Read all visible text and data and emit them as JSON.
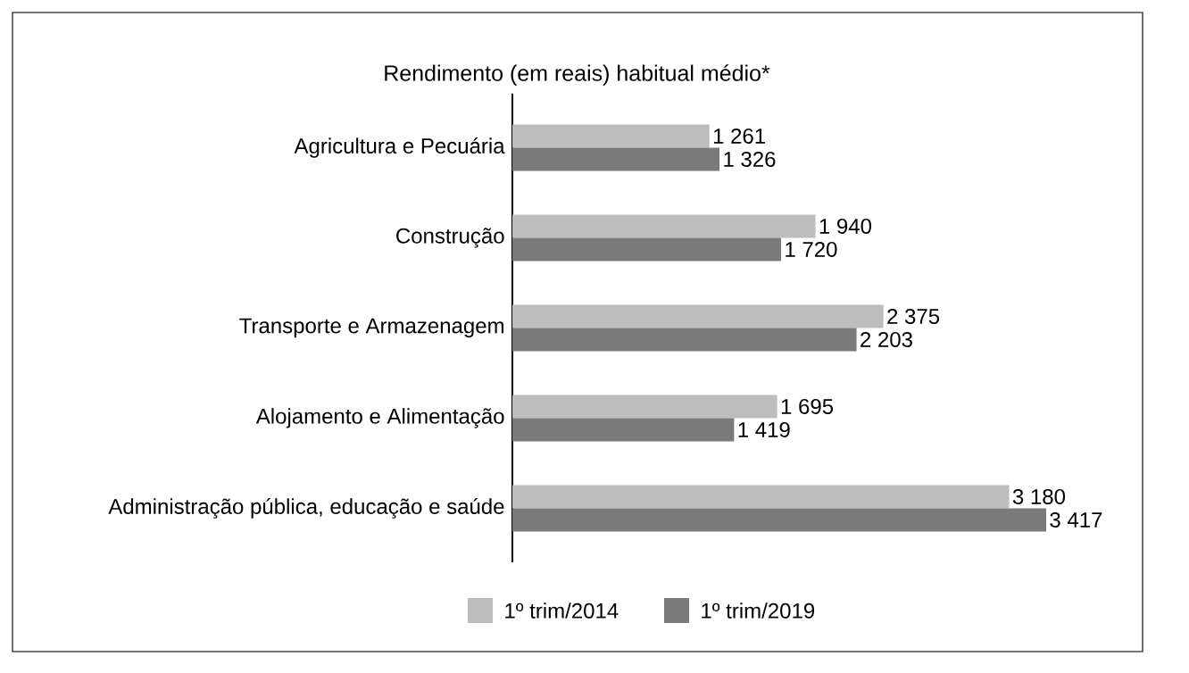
{
  "chart_data": {
    "type": "bar",
    "orientation": "horizontal",
    "title": "Rendimento (em reais) habitual médio*",
    "categories": [
      "Agricultura e Pecuária",
      "Construção",
      "Transporte e Armazenagem",
      "Alojamento e Alimentação",
      "Administração pública, educação e saúde"
    ],
    "series": [
      {
        "name": "1º trim/2014",
        "color": "#bdbdbd",
        "values": [
          1261,
          1940,
          2375,
          1695,
          3180
        ],
        "value_labels": [
          "1 261",
          "1 940",
          "2 375",
          "1 695",
          "3 180"
        ]
      },
      {
        "name": "1º trim/2019",
        "color": "#7a7a7a",
        "values": [
          1326,
          1720,
          2203,
          1419,
          3417
        ],
        "value_labels": [
          "1 326",
          "1 720",
          "2 203",
          "1 419",
          "3 417"
        ]
      }
    ],
    "legend": "bottom"
  }
}
